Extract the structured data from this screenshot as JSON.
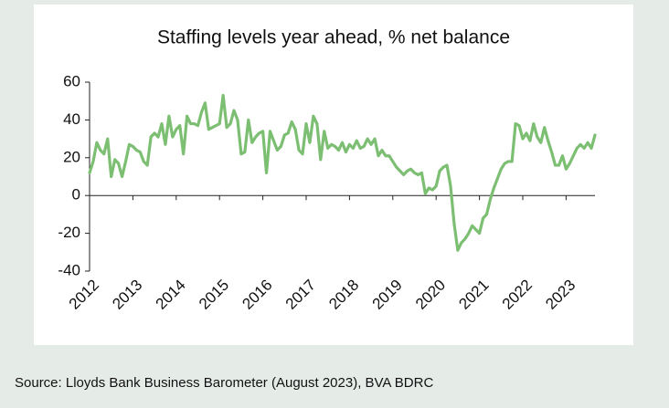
{
  "chart_data": {
    "type": "line",
    "title": "Staffing levels year ahead, % net balance",
    "source": "Source: Lloyds Bank Business Barometer (August 2023), BVA BDRC",
    "color": "#7cbf72",
    "ylim": [
      -40,
      60
    ],
    "yticks": [
      -40,
      -20,
      0,
      20,
      40,
      60
    ],
    "categories": [
      "2012",
      null,
      null,
      null,
      null,
      null,
      null,
      null,
      null,
      null,
      null,
      null,
      "2013",
      null,
      null,
      null,
      null,
      null,
      null,
      null,
      null,
      null,
      null,
      null,
      "2014",
      null,
      null,
      null,
      null,
      null,
      null,
      null,
      null,
      null,
      null,
      null,
      "2015",
      null,
      null,
      null,
      null,
      null,
      null,
      null,
      null,
      null,
      null,
      null,
      "2016",
      null,
      null,
      null,
      null,
      null,
      null,
      null,
      null,
      null,
      null,
      null,
      "2017",
      null,
      null,
      null,
      null,
      null,
      null,
      null,
      null,
      null,
      null,
      null,
      "2018",
      null,
      null,
      null,
      null,
      null,
      null,
      null,
      null,
      null,
      null,
      null,
      "2019",
      null,
      null,
      null,
      null,
      null,
      null,
      null,
      null,
      null,
      null,
      null,
      "2020",
      null,
      null,
      null,
      null,
      null,
      null,
      null,
      null,
      null,
      null,
      null,
      "2021",
      null,
      null,
      null,
      null,
      null,
      null,
      null,
      null,
      null,
      null,
      null,
      "2022",
      null,
      null,
      null,
      null,
      null,
      null,
      null,
      null,
      null,
      null,
      null,
      "2023",
      null,
      null,
      null,
      null,
      null,
      null,
      null,
      null
    ],
    "values": [
      12,
      18,
      28,
      24,
      22,
      30,
      10,
      19,
      17,
      10,
      18,
      27,
      26,
      24,
      23,
      18,
      16,
      31,
      33,
      31,
      38,
      27,
      42,
      31,
      35,
      37,
      22,
      42,
      38,
      38,
      37,
      44,
      49,
      35,
      36,
      37,
      38,
      53,
      36,
      38,
      45,
      40,
      22,
      23,
      40,
      28,
      31,
      33,
      34,
      12,
      34,
      29,
      24,
      26,
      32,
      33,
      39,
      35,
      24,
      22,
      38,
      28,
      42,
      38,
      19,
      34,
      25,
      27,
      26,
      24,
      28,
      23,
      27,
      25,
      29,
      25,
      26,
      30,
      27,
      30,
      21,
      24,
      21,
      21,
      18,
      15,
      13,
      11,
      13,
      14,
      12,
      11,
      12,
      1,
      4,
      3,
      5,
      13,
      15,
      16,
      5,
      -15,
      -29,
      -25,
      -23,
      -20,
      -16,
      -18,
      -20,
      -12,
      -10,
      -2,
      4,
      9,
      14,
      17,
      18,
      18,
      38,
      37,
      30,
      33,
      29,
      38,
      31,
      28,
      36,
      29,
      23,
      16,
      16,
      21,
      14,
      17,
      21,
      25,
      27,
      25,
      28,
      25,
      32
    ]
  }
}
